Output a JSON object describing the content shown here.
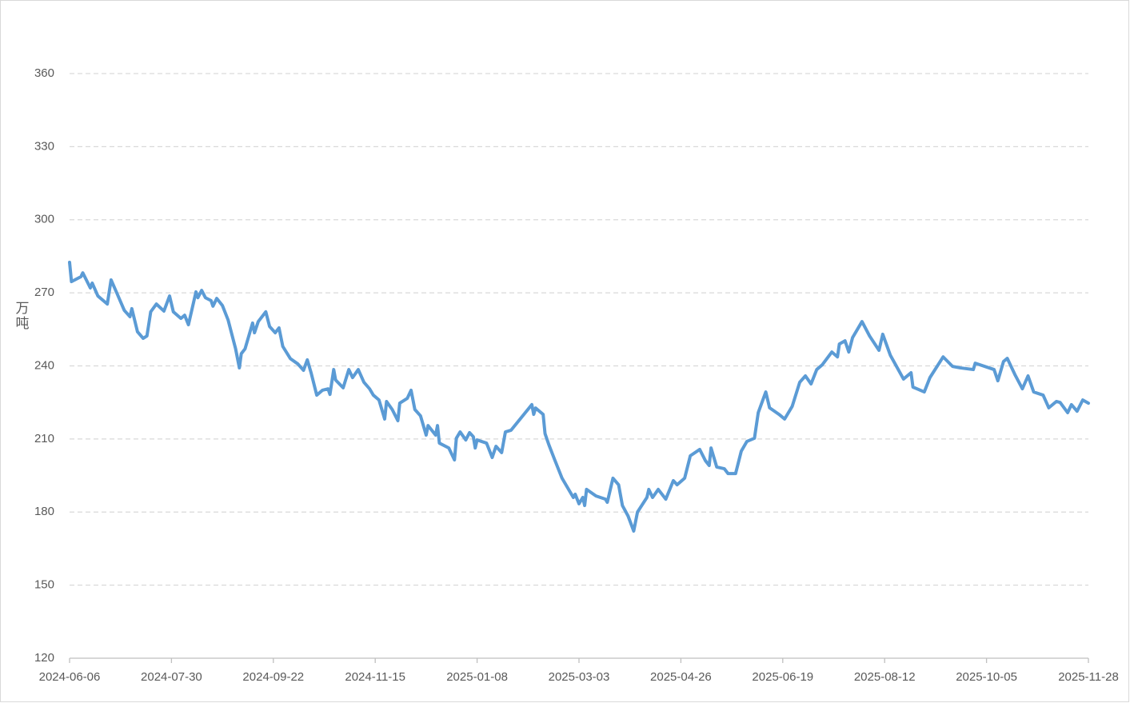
{
  "chart_data": {
    "type": "line",
    "y_label": "万吨",
    "color": "#5b9bd5",
    "grid": true,
    "ylim": [
      120,
      360
    ],
    "yticks": [
      120,
      150,
      180,
      210,
      240,
      270,
      300,
      330,
      360
    ],
    "xlim": [
      "2024-06-06",
      "2025-11-28"
    ],
    "xticks": [
      "2024-06-06",
      "2024-07-30",
      "2024-09-22",
      "2024-11-15",
      "2025-01-08",
      "2025-03-03",
      "2025-04-26",
      "2025-06-19",
      "2025-08-12",
      "2025-10-05",
      "2025-11-28"
    ],
    "x": [
      "2024-06-06",
      "2024-06-07",
      "2024-06-12",
      "2024-06-13",
      "2024-06-17",
      "2024-06-18",
      "2024-06-21",
      "2024-06-26",
      "2024-06-28",
      "2024-07-01",
      "2024-07-05",
      "2024-07-08",
      "2024-07-09",
      "2024-07-12",
      "2024-07-15",
      "2024-07-17",
      "2024-07-19",
      "2024-07-22",
      "2024-07-26",
      "2024-07-29",
      "2024-07-31",
      "2024-08-04",
      "2024-08-06",
      "2024-08-08",
      "2024-08-12",
      "2024-08-13",
      "2024-08-15",
      "2024-08-17",
      "2024-08-20",
      "2024-08-21",
      "2024-08-23",
      "2024-08-26",
      "2024-08-29",
      "2024-09-02",
      "2024-09-04",
      "2024-09-05",
      "2024-09-07",
      "2024-09-09",
      "2024-09-11",
      "2024-09-12",
      "2024-09-14",
      "2024-09-18",
      "2024-09-20",
      "2024-09-23",
      "2024-09-25",
      "2024-09-27",
      "2024-10-01",
      "2024-10-05",
      "2024-10-08",
      "2024-10-10",
      "2024-10-12",
      "2024-10-15",
      "2024-10-18",
      "2024-10-21",
      "2024-10-22",
      "2024-10-24",
      "2024-10-25",
      "2024-10-29",
      "2024-11-01",
      "2024-11-03",
      "2024-11-06",
      "2024-11-09",
      "2024-11-12",
      "2024-11-14",
      "2024-11-17",
      "2024-11-20",
      "2024-11-21",
      "2024-11-24",
      "2024-11-27",
      "2024-11-28",
      "2024-12-02",
      "2024-12-04",
      "2024-12-06",
      "2024-12-09",
      "2024-12-12",
      "2024-12-13",
      "2024-12-17",
      "2024-12-18",
      "2024-12-19",
      "2024-12-24",
      "2024-12-27",
      "2024-12-28",
      "2024-12-30",
      "2025-01-02",
      "2025-01-04",
      "2025-01-06",
      "2025-01-07",
      "2025-01-08",
      "2025-01-13",
      "2025-01-16",
      "2025-01-18",
      "2025-01-21",
      "2025-01-23",
      "2025-01-26",
      "2025-02-06",
      "2025-02-07",
      "2025-02-08",
      "2025-02-12",
      "2025-02-13",
      "2025-02-15",
      "2025-02-18",
      "2025-02-22",
      "2025-02-28",
      "2025-03-01",
      "2025-03-03",
      "2025-03-05",
      "2025-03-06",
      "2025-03-07",
      "2025-03-12",
      "2025-03-17",
      "2025-03-18",
      "2025-03-21",
      "2025-03-24",
      "2025-03-26",
      "2025-03-29",
      "2025-04-01",
      "2025-04-03",
      "2025-04-08",
      "2025-04-09",
      "2025-04-11",
      "2025-04-14",
      "2025-04-18",
      "2025-04-22",
      "2025-04-24",
      "2025-04-28",
      "2025-05-01",
      "2025-05-06",
      "2025-05-09",
      "2025-05-11",
      "2025-05-12",
      "2025-05-15",
      "2025-05-19",
      "2025-05-21",
      "2025-05-25",
      "2025-05-28",
      "2025-05-31",
      "2025-06-04",
      "2025-06-06",
      "2025-06-10",
      "2025-06-12",
      "2025-06-17",
      "2025-06-20",
      "2025-06-24",
      "2025-06-28",
      "2025-07-01",
      "2025-07-04",
      "2025-07-07",
      "2025-07-10",
      "2025-07-15",
      "2025-07-18",
      "2025-07-19",
      "2025-07-22",
      "2025-07-24",
      "2025-07-26",
      "2025-07-31",
      "2025-08-04",
      "2025-08-09",
      "2025-08-11",
      "2025-08-15",
      "2025-08-22",
      "2025-08-26",
      "2025-08-27",
      "2025-09-02",
      "2025-09-05",
      "2025-09-11",
      "2025-09-12",
      "2025-09-17",
      "2025-09-21",
      "2025-09-28",
      "2025-09-29",
      "2025-10-09",
      "2025-10-11",
      "2025-10-14",
      "2025-10-16",
      "2025-10-20",
      "2025-10-24",
      "2025-10-27",
      "2025-10-30",
      "2025-11-04",
      "2025-11-07",
      "2025-11-11",
      "2025-11-13",
      "2025-11-17",
      "2025-11-19",
      "2025-11-22",
      "2025-11-25",
      "2025-11-28"
    ],
    "values": [
      282.5,
      274.6,
      276.6,
      278.2,
      272,
      274,
      268.7,
      265.4,
      275.3,
      270,
      262.8,
      260.2,
      263.5,
      254,
      251.3,
      252.3,
      262.2,
      265.4,
      262.5,
      268.7,
      262.2,
      259.5,
      260.8,
      256.9,
      270.4,
      268,
      271,
      268,
      266.8,
      264.5,
      267.7,
      264.8,
      258.9,
      247,
      239.2,
      245,
      247,
      252.3,
      257.6,
      253.6,
      258.2,
      262.2,
      256.2,
      253.6,
      255.6,
      248,
      243,
      240.8,
      238.2,
      242.5,
      237.2,
      228,
      230,
      230.6,
      228.3,
      238.5,
      234.2,
      231,
      238.5,
      235.2,
      238.5,
      233.3,
      230.6,
      228,
      226,
      218.2,
      225.4,
      222.1,
      217.5,
      224.7,
      226.7,
      230,
      222.1,
      219.5,
      211.6,
      215.5,
      211.6,
      215.5,
      208.3,
      206.3,
      201.4,
      210.3,
      212.9,
      209.6,
      212.6,
      210.9,
      206.3,
      209.6,
      208.3,
      202.4,
      207,
      204.4,
      212.9,
      213.6,
      224.1,
      220.1,
      222.7,
      220.1,
      212.2,
      207.7,
      201.7,
      193.9,
      186,
      187.3,
      183.4,
      186,
      182.7,
      189.3,
      186.6,
      185.3,
      184,
      193.9,
      191.2,
      182.7,
      178.4,
      172.2,
      180,
      186,
      189.3,
      186,
      189.3,
      185.3,
      192.9,
      191.2,
      193.9,
      203.1,
      205.7,
      201.1,
      199.1,
      206.3,
      198.5,
      197.8,
      195.8,
      195.8,
      205,
      209,
      210.3,
      220.8,
      229.3,
      222.8,
      220.1,
      218.2,
      223.4,
      233.3,
      235.9,
      232.6,
      238.5,
      240.5,
      245.7,
      243.7,
      249,
      250.3,
      245.7,
      251.6,
      258.2,
      252.3,
      246.4,
      253,
      244.4,
      234.6,
      237.2,
      231.3,
      229.3,
      235.2,
      242.5,
      243.7,
      239.8,
      239.2,
      238.5,
      241.1,
      238.5,
      233.9,
      241.8,
      243.1,
      236.5,
      230.6,
      235.9,
      229.3,
      228,
      222.8,
      225.4,
      225,
      220.8,
      224.1,
      221.4,
      226,
      224.7
    ]
  }
}
